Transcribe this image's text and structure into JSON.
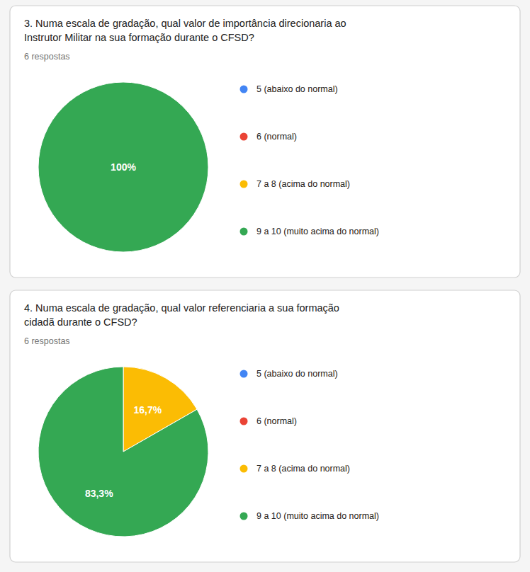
{
  "chart_data": [
    {
      "type": "pie",
      "title": "3. Numa escala de gradação, qual valor de importância direcionaria ao\nInstrutor Militar na sua formação durante o CFSD?",
      "subtitle": "6 respostas",
      "categories": [
        "5 (abaixo do normal)",
        "6 (normal)",
        "7 a 8 (acima do normal)",
        "9 a 10 (muito acima do normal)"
      ],
      "values": [
        0,
        0,
        0,
        100
      ],
      "value_labels": [
        null,
        null,
        null,
        "100%"
      ],
      "colors": [
        "#4285f4",
        "#ea4335",
        "#fbbc04",
        "#34a853"
      ],
      "data_labels": true
    },
    {
      "type": "pie",
      "title": "4. Numa escala de gradação, qual valor referenciaria a sua formação\ncidadã durante o CFSD?",
      "subtitle": "6 respostas",
      "categories": [
        "5 (abaixo do normal)",
        "6 (normal)",
        "7 a 8 (acima do normal)",
        "9 a 10 (muito acima do normal)"
      ],
      "values": [
        0,
        0,
        16.7,
        83.3
      ],
      "value_labels": [
        null,
        null,
        "16,7%",
        "83,3%"
      ],
      "colors": [
        "#4285f4",
        "#ea4335",
        "#fbbc04",
        "#34a853"
      ],
      "data_labels": true
    }
  ]
}
